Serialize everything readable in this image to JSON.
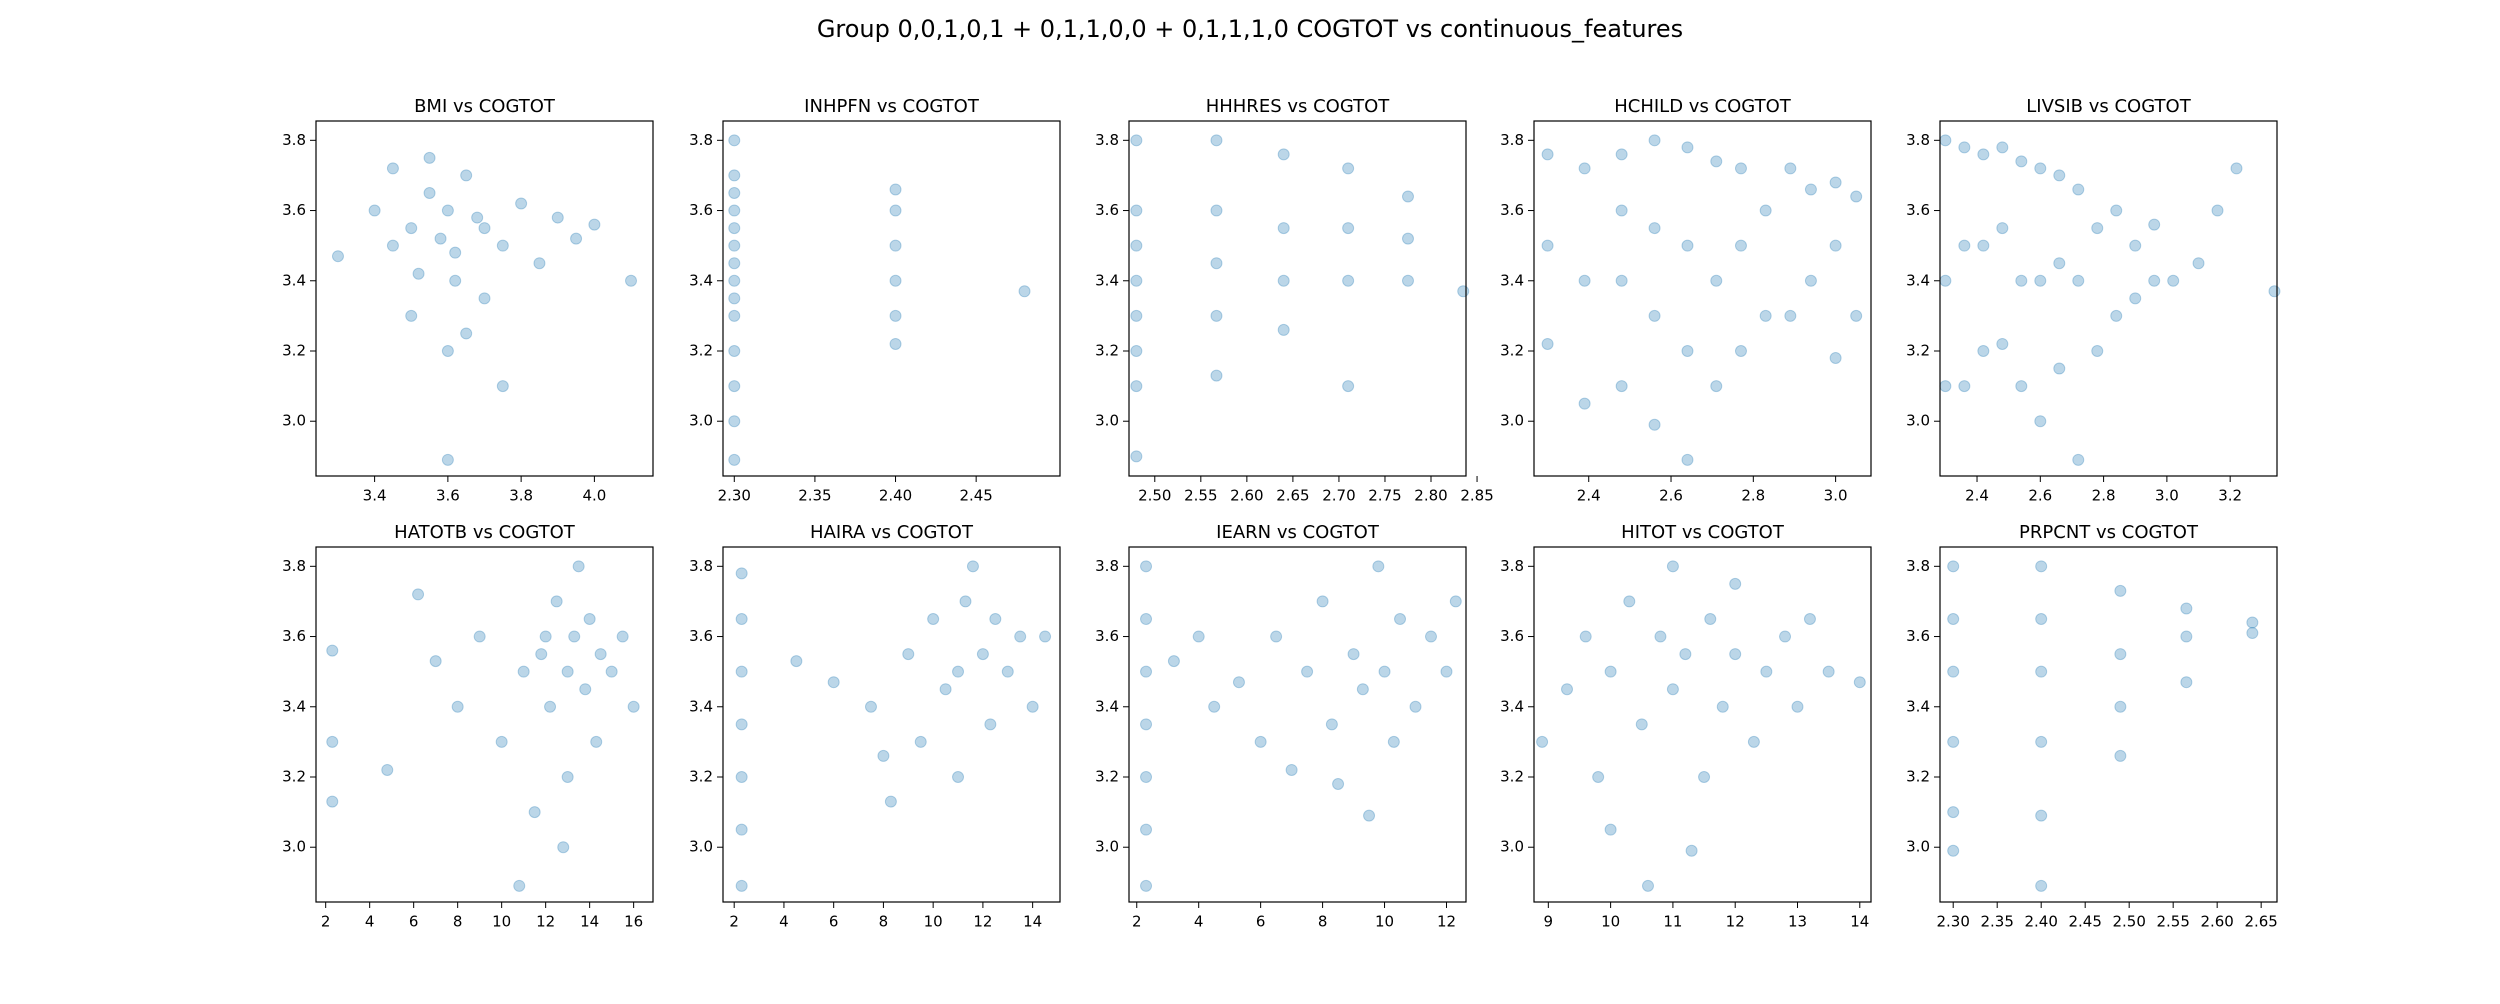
{
  "title": "Group 0,0,1,0,1 + 0,1,1,0,0 + 0,1,1,1,0 COGTOT vs continuous_features",
  "chart_data": [
    {
      "type": "scatter",
      "title": "BMI vs COGTOT",
      "color": "#1f77b4",
      "alpha": 0.3,
      "xlim": [
        3.24,
        4.16
      ],
      "ylim": [
        2.844,
        3.855
      ],
      "xticks": [
        3.4,
        3.6,
        3.8,
        {
          "value": 4,
          "label": "4.0"
        }
      ],
      "yticks": [
        {
          "value": 3,
          "label": "3.0"
        },
        3.2,
        3.4,
        3.6,
        3.8
      ],
      "x": [
        3.3,
        3.4,
        3.45,
        3.5,
        3.55,
        3.6,
        3.62,
        3.65,
        3.7,
        3.75,
        3.8,
        3.85,
        3.9,
        3.95,
        4.0,
        4.1,
        3.5,
        3.6,
        3.7,
        3.55,
        3.65,
        3.45,
        3.75,
        3.6,
        3.58,
        3.68,
        3.52,
        3.62
      ],
      "values": [
        3.47,
        3.6,
        3.5,
        3.55,
        3.65,
        3.6,
        3.4,
        3.7,
        3.55,
        3.5,
        3.62,
        3.45,
        3.58,
        3.52,
        3.56,
        3.4,
        3.3,
        3.2,
        3.35,
        3.75,
        3.25,
        3.72,
        3.1,
        2.89,
        3.52,
        3.58,
        3.42,
        3.48
      ]
    },
    {
      "type": "scatter",
      "title": "INHPFN vs COGTOT",
      "color": "#1f77b4",
      "alpha": 0.3,
      "xlim": [
        2.293,
        2.502
      ],
      "ylim": [
        2.844,
        3.855
      ],
      "xticks": [
        {
          "value": 2.3,
          "label": "2.30"
        },
        2.35,
        {
          "value": 2.4,
          "label": "2.40"
        },
        2.45
      ],
      "yticks": [
        {
          "value": 3,
          "label": "3.0"
        },
        3.2,
        3.4,
        3.6,
        3.8
      ],
      "x": [
        2.3,
        2.3,
        2.3,
        2.3,
        2.3,
        2.3,
        2.3,
        2.3,
        2.3,
        2.3,
        2.3,
        2.3,
        2.3,
        2.3,
        2.4,
        2.4,
        2.4,
        2.4,
        2.4,
        2.4,
        2.48
      ],
      "values": [
        2.89,
        3.0,
        3.1,
        3.2,
        3.3,
        3.35,
        3.4,
        3.45,
        3.5,
        3.55,
        3.6,
        3.65,
        3.7,
        3.8,
        3.22,
        3.3,
        3.4,
        3.5,
        3.6,
        3.66,
        3.37
      ]
    },
    {
      "type": "scatter",
      "title": "HHHRES vs COGTOT",
      "color": "#1f77b4",
      "alpha": 0.3,
      "xlim": [
        2.472,
        2.838
      ],
      "ylim": [
        2.844,
        3.855
      ],
      "xticks": [
        {
          "value": 2.5,
          "label": "2.50"
        },
        2.55,
        {
          "value": 2.6,
          "label": "2.60"
        },
        2.65,
        {
          "value": 2.7,
          "label": "2.70"
        },
        2.75,
        {
          "value": 2.8,
          "label": "2.80"
        },
        2.85
      ],
      "yticks": [
        {
          "value": 3,
          "label": "3.0"
        },
        3.2,
        3.4,
        3.6,
        3.8
      ],
      "x": [
        2.48,
        2.48,
        2.48,
        2.48,
        2.48,
        2.48,
        2.48,
        2.48,
        2.567,
        2.567,
        2.567,
        2.567,
        2.567,
        2.64,
        2.64,
        2.64,
        2.64,
        2.71,
        2.71,
        2.71,
        2.71,
        2.775,
        2.775,
        2.775,
        2.835
      ],
      "values": [
        2.9,
        3.1,
        3.2,
        3.3,
        3.4,
        3.5,
        3.6,
        3.8,
        3.13,
        3.3,
        3.45,
        3.6,
        3.8,
        3.26,
        3.4,
        3.55,
        3.76,
        3.1,
        3.4,
        3.55,
        3.72,
        3.4,
        3.52,
        3.64,
        3.37
      ]
    },
    {
      "type": "scatter",
      "title": "HCHILD vs COGTOT",
      "color": "#1f77b4",
      "alpha": 0.3,
      "xlim": [
        2.267,
        3.086
      ],
      "ylim": [
        2.844,
        3.855
      ],
      "xticks": [
        2.4,
        2.6,
        2.8,
        {
          "value": 3,
          "label": "3.0"
        }
      ],
      "yticks": [
        {
          "value": 3,
          "label": "3.0"
        },
        3.2,
        3.4,
        3.6,
        3.8
      ],
      "x": [
        2.3,
        2.3,
        2.3,
        2.39,
        2.39,
        2.39,
        2.48,
        2.48,
        2.48,
        2.48,
        2.56,
        2.56,
        2.56,
        2.56,
        2.64,
        2.64,
        2.64,
        2.64,
        2.71,
        2.71,
        2.71,
        2.77,
        2.77,
        2.77,
        2.83,
        2.83,
        2.89,
        2.89,
        2.94,
        2.94,
        3.0,
        3.0,
        3.0,
        3.05,
        3.05
      ],
      "values": [
        3.22,
        3.5,
        3.76,
        3.05,
        3.4,
        3.72,
        3.1,
        3.4,
        3.6,
        3.76,
        2.99,
        3.3,
        3.55,
        3.8,
        2.89,
        3.2,
        3.5,
        3.78,
        3.1,
        3.4,
        3.74,
        3.2,
        3.5,
        3.72,
        3.3,
        3.6,
        3.3,
        3.72,
        3.4,
        3.66,
        3.18,
        3.5,
        3.68,
        3.3,
        3.64
      ]
    },
    {
      "type": "scatter",
      "title": "LIVSIB vs COGTOT",
      "color": "#1f77b4",
      "alpha": 0.3,
      "xlim": [
        2.283,
        3.348
      ],
      "ylim": [
        2.844,
        3.855
      ],
      "xticks": [
        2.4,
        2.6,
        2.8,
        {
          "value": 3,
          "label": "3.0"
        },
        3.2
      ],
      "yticks": [
        {
          "value": 3,
          "label": "3.0"
        },
        3.2,
        3.4,
        3.6,
        3.8
      ],
      "x": [
        2.3,
        2.3,
        2.3,
        2.36,
        2.36,
        2.36,
        2.42,
        2.42,
        2.42,
        2.48,
        2.48,
        2.48,
        2.54,
        2.54,
        2.54,
        2.6,
        2.6,
        2.6,
        2.66,
        2.66,
        2.66,
        2.72,
        2.72,
        2.72,
        2.78,
        2.78,
        2.84,
        2.84,
        2.9,
        2.9,
        2.96,
        2.96,
        3.02,
        3.1,
        3.16,
        3.22,
        3.34
      ],
      "values": [
        3.1,
        3.4,
        3.8,
        3.1,
        3.5,
        3.78,
        3.2,
        3.5,
        3.76,
        3.22,
        3.55,
        3.78,
        3.1,
        3.4,
        3.74,
        3.0,
        3.4,
        3.72,
        3.15,
        3.45,
        3.7,
        2.89,
        3.4,
        3.66,
        3.2,
        3.55,
        3.3,
        3.6,
        3.35,
        3.5,
        3.4,
        3.56,
        3.4,
        3.45,
        3.6,
        3.72,
        3.37
      ]
    },
    {
      "type": "scatter",
      "title": "HATOTB vs COGTOT",
      "color": "#1f77b4",
      "alpha": 0.3,
      "xlim": [
        1.56,
        16.88
      ],
      "ylim": [
        2.844,
        3.855
      ],
      "xticks": [
        2,
        4,
        6,
        8,
        10,
        12,
        14,
        16
      ],
      "yticks": [
        {
          "value": 3,
          "label": "3.0"
        },
        3.2,
        3.4,
        3.6,
        3.8
      ],
      "x": [
        2.3,
        2.3,
        2.3,
        4.8,
        6.2,
        7,
        8,
        9,
        10,
        10.8,
        11,
        11.5,
        12,
        12.2,
        12.5,
        13,
        13,
        13.3,
        13.5,
        13.8,
        14,
        14.3,
        14.5,
        15,
        15.5,
        16,
        12.8,
        11.8
      ],
      "values": [
        3.56,
        3.13,
        3.3,
        3.22,
        3.72,
        3.53,
        3.4,
        3.6,
        3.3,
        2.89,
        3.5,
        3.1,
        3.6,
        3.4,
        3.7,
        3.5,
        3.2,
        3.6,
        3.8,
        3.45,
        3.65,
        3.3,
        3.55,
        3.5,
        3.6,
        3.4,
        3.0,
        3.55
      ]
    },
    {
      "type": "scatter",
      "title": "HAIRA vs COGTOT",
      "color": "#1f77b4",
      "alpha": 0.3,
      "xlim": [
        1.55,
        15.1
      ],
      "ylim": [
        2.844,
        3.855
      ],
      "xticks": [
        2,
        4,
        6,
        8,
        10,
        12,
        14
      ],
      "yticks": [
        {
          "value": 3,
          "label": "3.0"
        },
        3.2,
        3.4,
        3.6,
        3.8
      ],
      "x": [
        2.3,
        2.3,
        2.3,
        2.3,
        2.3,
        2.3,
        2.3,
        4.5,
        6,
        7.5,
        8,
        8.3,
        9,
        9.5,
        10,
        10.5,
        11,
        11,
        11.3,
        11.6,
        12,
        12.3,
        12.5,
        13,
        13.5,
        14,
        14.5
      ],
      "values": [
        2.89,
        3.05,
        3.2,
        3.35,
        3.5,
        3.65,
        3.78,
        3.53,
        3.47,
        3.4,
        3.26,
        3.13,
        3.55,
        3.3,
        3.65,
        3.45,
        3.5,
        3.2,
        3.7,
        3.8,
        3.55,
        3.35,
        3.65,
        3.5,
        3.6,
        3.4,
        3.6
      ]
    },
    {
      "type": "scatter",
      "title": "IEARN vs COGTOT",
      "color": "#1f77b4",
      "alpha": 0.3,
      "xlim": [
        1.75,
        12.63
      ],
      "ylim": [
        2.844,
        3.855
      ],
      "xticks": [
        2,
        4,
        6,
        8,
        10,
        12
      ],
      "yticks": [
        {
          "value": 3,
          "label": "3.0"
        },
        3.2,
        3.4,
        3.6,
        3.8
      ],
      "x": [
        2.3,
        2.3,
        2.3,
        2.3,
        2.3,
        2.3,
        2.3,
        3.2,
        4,
        4.5,
        5.3,
        6,
        6.5,
        7,
        7.5,
        8,
        8.3,
        8.5,
        9,
        9.3,
        9.5,
        9.8,
        10,
        10.3,
        10.5,
        11,
        11.5,
        12,
        12.3
      ],
      "values": [
        2.89,
        3.05,
        3.2,
        3.35,
        3.5,
        3.65,
        3.8,
        3.53,
        3.6,
        3.4,
        3.47,
        3.3,
        3.6,
        3.22,
        3.5,
        3.7,
        3.35,
        3.18,
        3.55,
        3.45,
        3.09,
        3.8,
        3.5,
        3.3,
        3.65,
        3.4,
        3.6,
        3.5,
        3.7
      ]
    },
    {
      "type": "scatter",
      "title": "HITOT vs COGTOT",
      "color": "#1f77b4",
      "alpha": 0.3,
      "xlim": [
        8.77,
        14.18
      ],
      "ylim": [
        2.844,
        3.855
      ],
      "xticks": [
        9,
        10,
        11,
        12,
        13,
        14
      ],
      "yticks": [
        {
          "value": 3,
          "label": "3.0"
        },
        3.2,
        3.4,
        3.6,
        3.8
      ],
      "x": [
        8.9,
        9.3,
        9.6,
        9.8,
        10,
        10,
        10.3,
        10.5,
        10.6,
        10.8,
        11,
        11,
        11.2,
        11.3,
        11.5,
        11.6,
        11.8,
        12,
        12,
        12.3,
        12.5,
        12.8,
        13,
        13.2,
        13.5,
        14
      ],
      "values": [
        3.3,
        3.45,
        3.6,
        3.2,
        3.05,
        3.5,
        3.7,
        3.35,
        2.89,
        3.6,
        3.45,
        3.8,
        3.55,
        2.99,
        3.2,
        3.65,
        3.4,
        3.55,
        3.75,
        3.3,
        3.5,
        3.6,
        3.4,
        3.65,
        3.5,
        3.47
      ]
    },
    {
      "type": "scatter",
      "title": "PRPCNT vs COGTOT",
      "color": "#1f77b4",
      "alpha": 0.3,
      "xlim": [
        2.285,
        2.668
      ],
      "ylim": [
        2.844,
        3.855
      ],
      "xticks": [
        {
          "value": 2.3,
          "label": "2.30"
        },
        2.35,
        {
          "value": 2.4,
          "label": "2.40"
        },
        2.45,
        {
          "value": 2.5,
          "label": "2.50"
        },
        2.55,
        {
          "value": 2.6,
          "label": "2.60"
        },
        2.65
      ],
      "yticks": [
        {
          "value": 3,
          "label": "3.0"
        },
        3.2,
        3.4,
        3.6,
        3.8
      ],
      "x": [
        2.3,
        2.3,
        2.3,
        2.3,
        2.3,
        2.3,
        2.4,
        2.4,
        2.4,
        2.4,
        2.4,
        2.4,
        2.49,
        2.49,
        2.49,
        2.49,
        2.565,
        2.565,
        2.565,
        2.64,
        2.64
      ],
      "values": [
        2.99,
        3.1,
        3.3,
        3.5,
        3.65,
        3.8,
        2.89,
        3.09,
        3.3,
        3.5,
        3.65,
        3.8,
        3.26,
        3.4,
        3.55,
        3.73,
        3.47,
        3.6,
        3.68,
        3.61,
        3.64
      ]
    }
  ]
}
